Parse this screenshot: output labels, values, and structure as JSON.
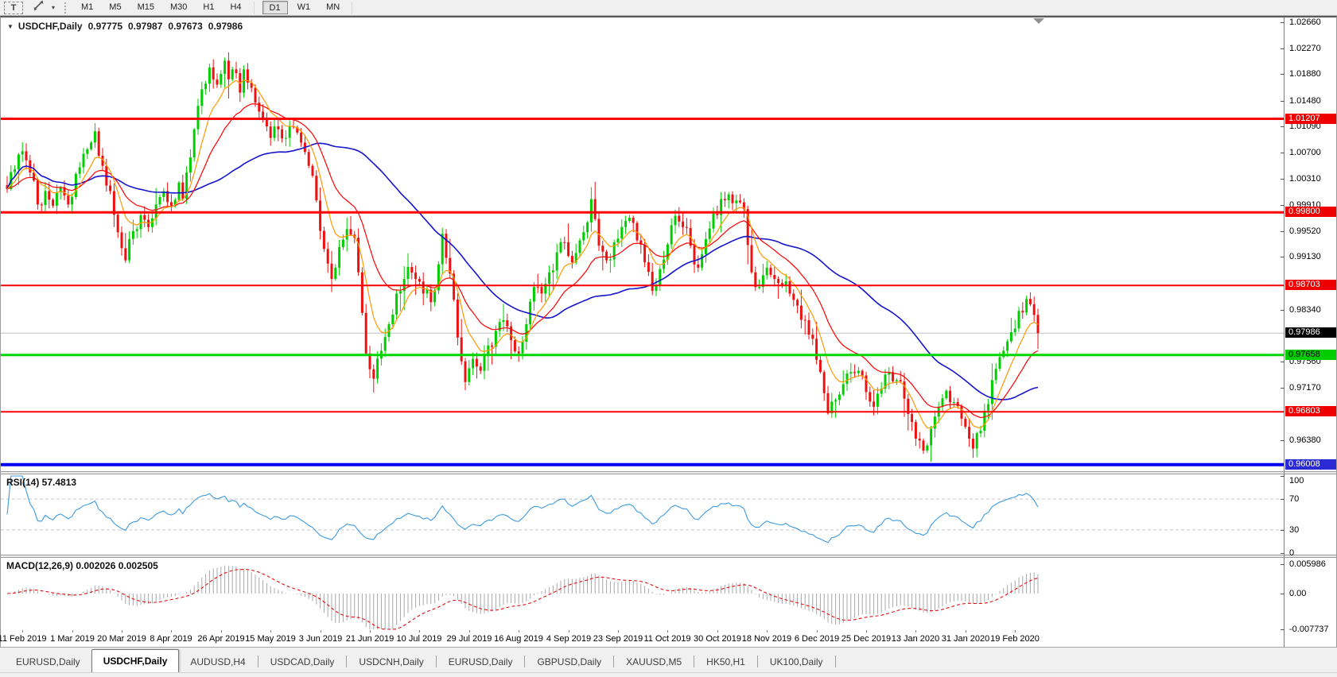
{
  "toolbar": {
    "text_tool_label": "T",
    "dropdown_caret": "▾",
    "timeframes": [
      "M1",
      "M5",
      "M15",
      "M30",
      "H1",
      "H4",
      "D1",
      "W1",
      "MN"
    ],
    "active_timeframe": "D1"
  },
  "chart_header": {
    "collapse_icon": "▼",
    "symbol": "USDCHF,Daily",
    "open": "0.97775",
    "high": "0.97987",
    "low": "0.97673",
    "close": "0.97986"
  },
  "price_axis": {
    "ticks": [
      "1.02660",
      "1.02270",
      "1.01880",
      "1.01480",
      "1.01090",
      "1.00700",
      "1.00310",
      "0.99910",
      "0.99520",
      "0.99130",
      "0.98340",
      "0.97560",
      "0.97170",
      "0.96380"
    ]
  },
  "levels": [
    {
      "price": "1.01207",
      "value": 1.01207,
      "kind": "resistance",
      "line_color": "#FF0000",
      "line_width": 3,
      "box_color": "#EE0000",
      "box_text": "#FFFFFF"
    },
    {
      "price": "0.99800",
      "value": 0.998,
      "kind": "resistance",
      "line_color": "#FF0000",
      "line_width": 3,
      "box_color": "#EE0000",
      "box_text": "#FFFFFF"
    },
    {
      "price": "0.98703",
      "value": 0.98703,
      "kind": "resistance",
      "line_color": "#FF0000",
      "line_width": 2,
      "box_color": "#EE0000",
      "box_text": "#FFFFFF"
    },
    {
      "price": "0.97986",
      "value": 0.97986,
      "kind": "current",
      "line_color": "#C0C0C0",
      "line_width": 1,
      "box_color": "#000000",
      "box_text": "#FFFFFF"
    },
    {
      "price": "0.97658",
      "value": 0.97658,
      "kind": "support",
      "line_color": "#00D500",
      "line_width": 3,
      "box_color": "#00CC00",
      "box_text": "#000000"
    },
    {
      "price": "0.96803",
      "value": 0.96803,
      "kind": "support",
      "line_color": "#FF0000",
      "line_width": 2,
      "box_color": "#EE0000",
      "box_text": "#FFFFFF"
    },
    {
      "price": "0.96008",
      "value": 0.96008,
      "kind": "support",
      "line_color": "#0000EE",
      "line_width": 4,
      "box_color": "#2B2BD5",
      "box_text": "#FFFFFF"
    }
  ],
  "rsi": {
    "label": "RSI(14) 57.4813",
    "period": 14,
    "value": 57.4813,
    "axis": [
      "100",
      "70",
      "30",
      "0"
    ],
    "levels": [
      70,
      30
    ],
    "line_color": "#3E9BE0"
  },
  "macd": {
    "label": "MACD(12,26,9) 0.002026 0.002505",
    "params": "12,26,9",
    "macd_value": 0.002026,
    "signal_value": 0.002505,
    "axis_top": "0.005986",
    "axis_zero": "0.00",
    "axis_bottom": "-0.007737",
    "hist_color": "#A8A8A8",
    "signal_color": "#E01010"
  },
  "date_axis": {
    "labels": [
      "11 Feb 2019",
      "1 Mar 2019",
      "20 Mar 2019",
      "8 Apr 2019",
      "26 Apr 2019",
      "15 May 2019",
      "3 Jun 2019",
      "21 Jun 2019",
      "10 Jul 2019",
      "29 Jul 2019",
      "16 Aug 2019",
      "4 Sep 2019",
      "23 Sep 2019",
      "11 Oct 2019",
      "30 Oct 2019",
      "18 Nov 2019",
      "6 Dec 2019",
      "25 Dec 2019",
      "13 Jan 2020",
      "31 Jan 2020",
      "19 Feb 2020"
    ]
  },
  "tabs": {
    "items": [
      {
        "label": "EURUSD,Daily",
        "active": false
      },
      {
        "label": "USDCHF,Daily",
        "active": true
      },
      {
        "label": "AUDUSD,H4",
        "active": false
      },
      {
        "label": "USDCAD,Daily",
        "active": false
      },
      {
        "label": "USDCNH,Daily",
        "active": false
      },
      {
        "label": "EURUSD,Daily",
        "active": false
      },
      {
        "label": "GBPUSD,Daily",
        "active": false
      },
      {
        "label": "XAUUSD,M5",
        "active": false
      },
      {
        "label": "HK50,H1",
        "active": false
      },
      {
        "label": "UK100,Daily",
        "active": false
      }
    ]
  },
  "colors": {
    "candle_up": "#00CE00",
    "candle_down": "#EE1111",
    "ma_fast": "#FF9900",
    "ma_mid": "#FF0000",
    "ma_slow": "#1515CC",
    "background": "#FFFFFF",
    "axis_line": "#7D7D7D",
    "toolbar_bg": "#F0F0F0"
  },
  "chart_data": {
    "type": "candlestick",
    "symbol": "USDCHF",
    "timeframe": "Daily",
    "title": "USDCHF,Daily",
    "current_bar": {
      "open": 0.97775,
      "high": 0.97987,
      "low": 0.97673,
      "close": 0.97986
    },
    "y_axis_range": [
      0.9591,
      1.0273
    ],
    "x_axis_range": [
      "11 Feb 2019",
      "19 Feb 2020"
    ],
    "horizontal_levels": [
      1.01207,
      0.998,
      0.98703,
      0.97986,
      0.97658,
      0.96803,
      0.96008
    ],
    "indicators": [
      {
        "name": "MA",
        "kind": "fast",
        "color": "#FF9900"
      },
      {
        "name": "MA",
        "kind": "medium",
        "color": "#FF0000"
      },
      {
        "name": "MA",
        "kind": "slow",
        "color": "#1515CC"
      },
      {
        "name": "RSI",
        "period": 14,
        "value": 57.4813,
        "levels": [
          70,
          30
        ]
      },
      {
        "name": "MACD",
        "fast": 12,
        "slow": 26,
        "signal": 9,
        "values": [
          0.002026,
          0.002505
        ],
        "range": [
          0.005986,
          -0.007737
        ]
      }
    ],
    "close_anchors": [
      [
        0,
        1.0015
      ],
      [
        2,
        1.0045
      ],
      [
        4,
        1.0072
      ],
      [
        6,
        1.004
      ],
      [
        8,
        0.9992
      ],
      [
        10,
        1.0012
      ],
      [
        12,
        0.999
      ],
      [
        14,
        1.0018
      ],
      [
        16,
        0.9992
      ],
      [
        18,
        1.0038
      ],
      [
        20,
        1.0068
      ],
      [
        21,
        1.0075
      ],
      [
        23,
        1.0102
      ],
      [
        25,
        1.005
      ],
      [
        27,
        1.0012
      ],
      [
        29,
        0.995
      ],
      [
        31,
        0.9908
      ],
      [
        33,
        0.9952
      ],
      [
        35,
        0.9976
      ],
      [
        37,
        0.9958
      ],
      [
        39,
        0.9992
      ],
      [
        41,
        1.0012
      ],
      [
        43,
        0.999
      ],
      [
        45,
        1.0025
      ],
      [
        46,
        1.0
      ],
      [
        47,
        1.004
      ],
      [
        49,
        1.0105
      ],
      [
        51,
        1.0165
      ],
      [
        53,
        1.0198
      ],
      [
        55,
        1.0172
      ],
      [
        57,
        1.0208
      ],
      [
        58,
        1.018
      ],
      [
        59,
        1.0195
      ],
      [
        61,
        1.016
      ],
      [
        62,
        1.0195
      ],
      [
        63,
        1.0175
      ],
      [
        65,
        1.0145
      ],
      [
        67,
        1.012
      ],
      [
        69,
        1.0092
      ],
      [
        71,
        1.0105
      ],
      [
        73,
        1.0092
      ],
      [
        75,
        1.0108
      ],
      [
        77,
        1.0085
      ],
      [
        79,
        1.005
      ],
      [
        81,
        0.9998
      ],
      [
        83,
        0.9925
      ],
      [
        85,
        0.988
      ],
      [
        87,
        0.9928
      ],
      [
        89,
        0.9955
      ],
      [
        91,
        0.9942
      ],
      [
        92,
        0.989
      ],
      [
        94,
        0.9768
      ],
      [
        96,
        0.973
      ],
      [
        98,
        0.9772
      ],
      [
        100,
        0.9812
      ],
      [
        102,
        0.9858
      ],
      [
        104,
        0.988
      ],
      [
        105,
        0.9898
      ],
      [
        107,
        0.988
      ],
      [
        109,
        0.9858
      ],
      [
        111,
        0.9845
      ],
      [
        113,
        0.9902
      ],
      [
        114,
        0.9948
      ],
      [
        116,
        0.9888
      ],
      [
        118,
        0.9792
      ],
      [
        120,
        0.9725
      ],
      [
        122,
        0.976
      ],
      [
        124,
        0.9742
      ],
      [
        126,
        0.978
      ],
      [
        128,
        0.9802
      ],
      [
        130,
        0.9818
      ],
      [
        132,
        0.9788
      ],
      [
        134,
        0.9768
      ],
      [
        136,
        0.9812
      ],
      [
        138,
        0.9868
      ],
      [
        140,
        0.9858
      ],
      [
        142,
        0.989
      ],
      [
        144,
        0.992
      ],
      [
        146,
        0.9935
      ],
      [
        148,
        0.9905
      ],
      [
        150,
        0.9938
      ],
      [
        152,
        0.9965
      ],
      [
        153,
        1.0
      ],
      [
        155,
        0.993
      ],
      [
        157,
        0.9908
      ],
      [
        159,
        0.9935
      ],
      [
        161,
        0.9958
      ],
      [
        163,
        0.9972
      ],
      [
        165,
        0.9938
      ],
      [
        167,
        0.9905
      ],
      [
        169,
        0.9862
      ],
      [
        171,
        0.9895
      ],
      [
        173,
        0.9932
      ],
      [
        175,
        0.9975
      ],
      [
        177,
        0.9958
      ],
      [
        179,
        0.993
      ],
      [
        181,
        0.9897
      ],
      [
        183,
        0.994
      ],
      [
        185,
        0.9978
      ],
      [
        187,
        1.0
      ],
      [
        189,
        1.0007
      ],
      [
        191,
        0.9998
      ],
      [
        193,
        0.9985
      ],
      [
        195,
        0.989
      ],
      [
        197,
        0.9868
      ],
      [
        199,
        0.9897
      ],
      [
        201,
        0.988
      ],
      [
        203,
        0.987
      ],
      [
        205,
        0.9858
      ],
      [
        207,
        0.984
      ],
      [
        209,
        0.9818
      ],
      [
        211,
        0.979
      ],
      [
        213,
        0.974
      ],
      [
        215,
        0.9678
      ],
      [
        217,
        0.9698
      ],
      [
        219,
        0.9722
      ],
      [
        221,
        0.974
      ],
      [
        223,
        0.9742
      ],
      [
        225,
        0.971
      ],
      [
        227,
        0.9688
      ],
      [
        229,
        0.9715
      ],
      [
        231,
        0.974
      ],
      [
        233,
        0.9728
      ],
      [
        235,
        0.97
      ],
      [
        237,
        0.9665
      ],
      [
        238,
        0.964
      ],
      [
        240,
        0.9622
      ],
      [
        242,
        0.9655
      ],
      [
        244,
        0.9688
      ],
      [
        246,
        0.9712
      ],
      [
        248,
        0.9695
      ],
      [
        250,
        0.967
      ],
      [
        252,
        0.964
      ],
      [
        253,
        0.9625
      ],
      [
        255,
        0.9652
      ],
      [
        257,
        0.9692
      ],
      [
        258,
        0.9728
      ],
      [
        259,
        0.9745
      ],
      [
        261,
        0.9772
      ],
      [
        263,
        0.98
      ],
      [
        265,
        0.9832
      ],
      [
        267,
        0.985
      ],
      [
        268,
        0.9842
      ],
      [
        269,
        0.9826
      ],
      [
        270,
        0.97986
      ]
    ]
  }
}
